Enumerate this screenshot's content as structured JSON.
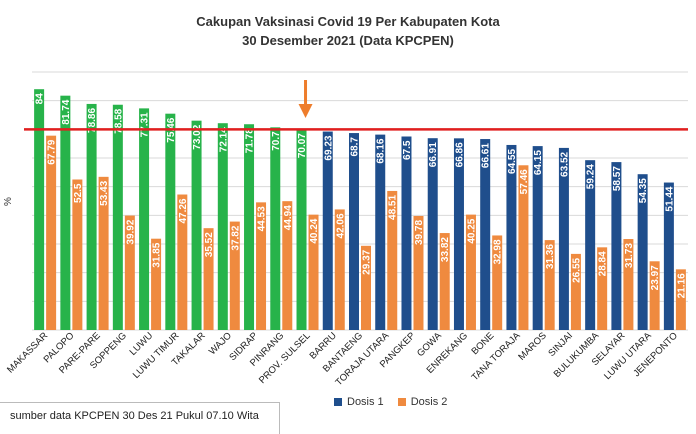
{
  "chart_data": {
    "type": "bar",
    "title": "Cakupan Vaksinasi Covid 19 Per Kabupaten Kota",
    "subtitle": "30 Desember 2021 (Data KPCPEN)",
    "ylabel": "%",
    "ylim": [
      0,
      90
    ],
    "grid": true,
    "target_line": 70,
    "highlight_category": "PROV. SULSEL",
    "categories": [
      "MAKASSAR",
      "PALOPO",
      "PARE-PARE",
      "SOPPENG",
      "LUWU",
      "LUWU TIMUR",
      "TAKALAR",
      "WAJO",
      "SIDRAP",
      "PINRANG",
      "PROV. SULSEL",
      "BARRU",
      "BANTAENG",
      "TORAJA UTARA",
      "PANGKEP",
      "GOWA",
      "ENREKANG",
      "BONE",
      "TANA TORAJA",
      "MAROS",
      "SINJAI",
      "BULUKUMBA",
      "SELAYAR",
      "LUWU UTARA",
      "JENEPONTO"
    ],
    "series": [
      {
        "name": "Dosis 1",
        "values": [
          84,
          81.74,
          78.86,
          78.58,
          77.31,
          75.46,
          73.02,
          72.14,
          71.78,
          70.7,
          70.07,
          69.23,
          68.7,
          68.16,
          67.5,
          66.91,
          66.86,
          66.61,
          64.55,
          64.15,
          63.52,
          59.24,
          58.57,
          54.35,
          51.44
        ]
      },
      {
        "name": "Dosis 2",
        "values": [
          67.79,
          52.5,
          53.43,
          39.92,
          31.85,
          47.26,
          35.52,
          37.82,
          44.53,
          44.94,
          40.24,
          42.06,
          29.37,
          48.51,
          39.78,
          33.82,
          40.25,
          32.98,
          57.46,
          31.36,
          26.55,
          28.84,
          31.73,
          23.97,
          21.16
        ]
      }
    ],
    "colors": {
      "dosis1_above": "#27b34a",
      "dosis1": "#1f4e8c",
      "dosis2": "#ef8a3f",
      "target": "#e01f1f",
      "arrow": "#ee7d2c"
    },
    "legend": "bottom-center"
  },
  "legend_labels": [
    "Dosis 1",
    "Dosis 2"
  ],
  "footer": "sumber data KPCPEN 30 Des 21 Pukul 07.10 Wita"
}
